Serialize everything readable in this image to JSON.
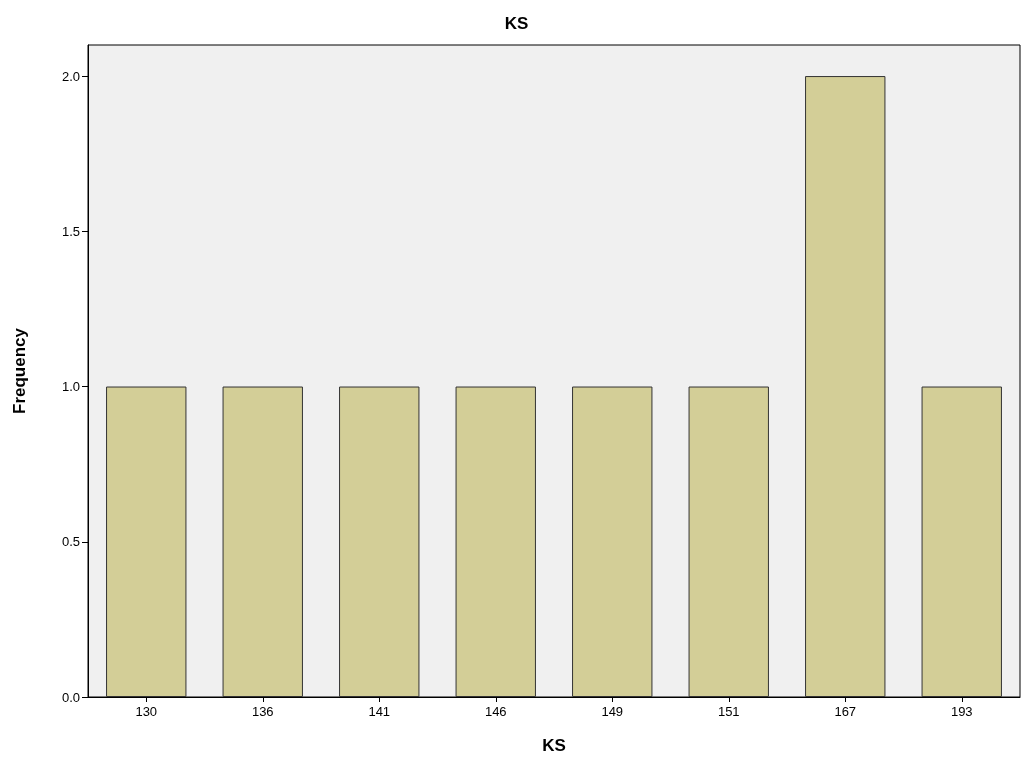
{
  "chart_data": {
    "type": "bar",
    "title": "KS",
    "xlabel": "KS",
    "ylabel": "Frequency",
    "categories": [
      "130",
      "136",
      "141",
      "146",
      "149",
      "151",
      "167",
      "193"
    ],
    "values": [
      1,
      1,
      1,
      1,
      1,
      1,
      2,
      1
    ],
    "color": "#d3ce97",
    "ylim": [
      0,
      2.1
    ],
    "yticks": [
      {
        "value": 0,
        "label": "0.0"
      },
      {
        "value": 0.5,
        "label": "0.5"
      },
      {
        "value": 1,
        "label": "1.0"
      },
      {
        "value": 1.5,
        "label": "1.5"
      },
      {
        "value": 2,
        "label": "2.0"
      }
    ],
    "grid": false
  }
}
